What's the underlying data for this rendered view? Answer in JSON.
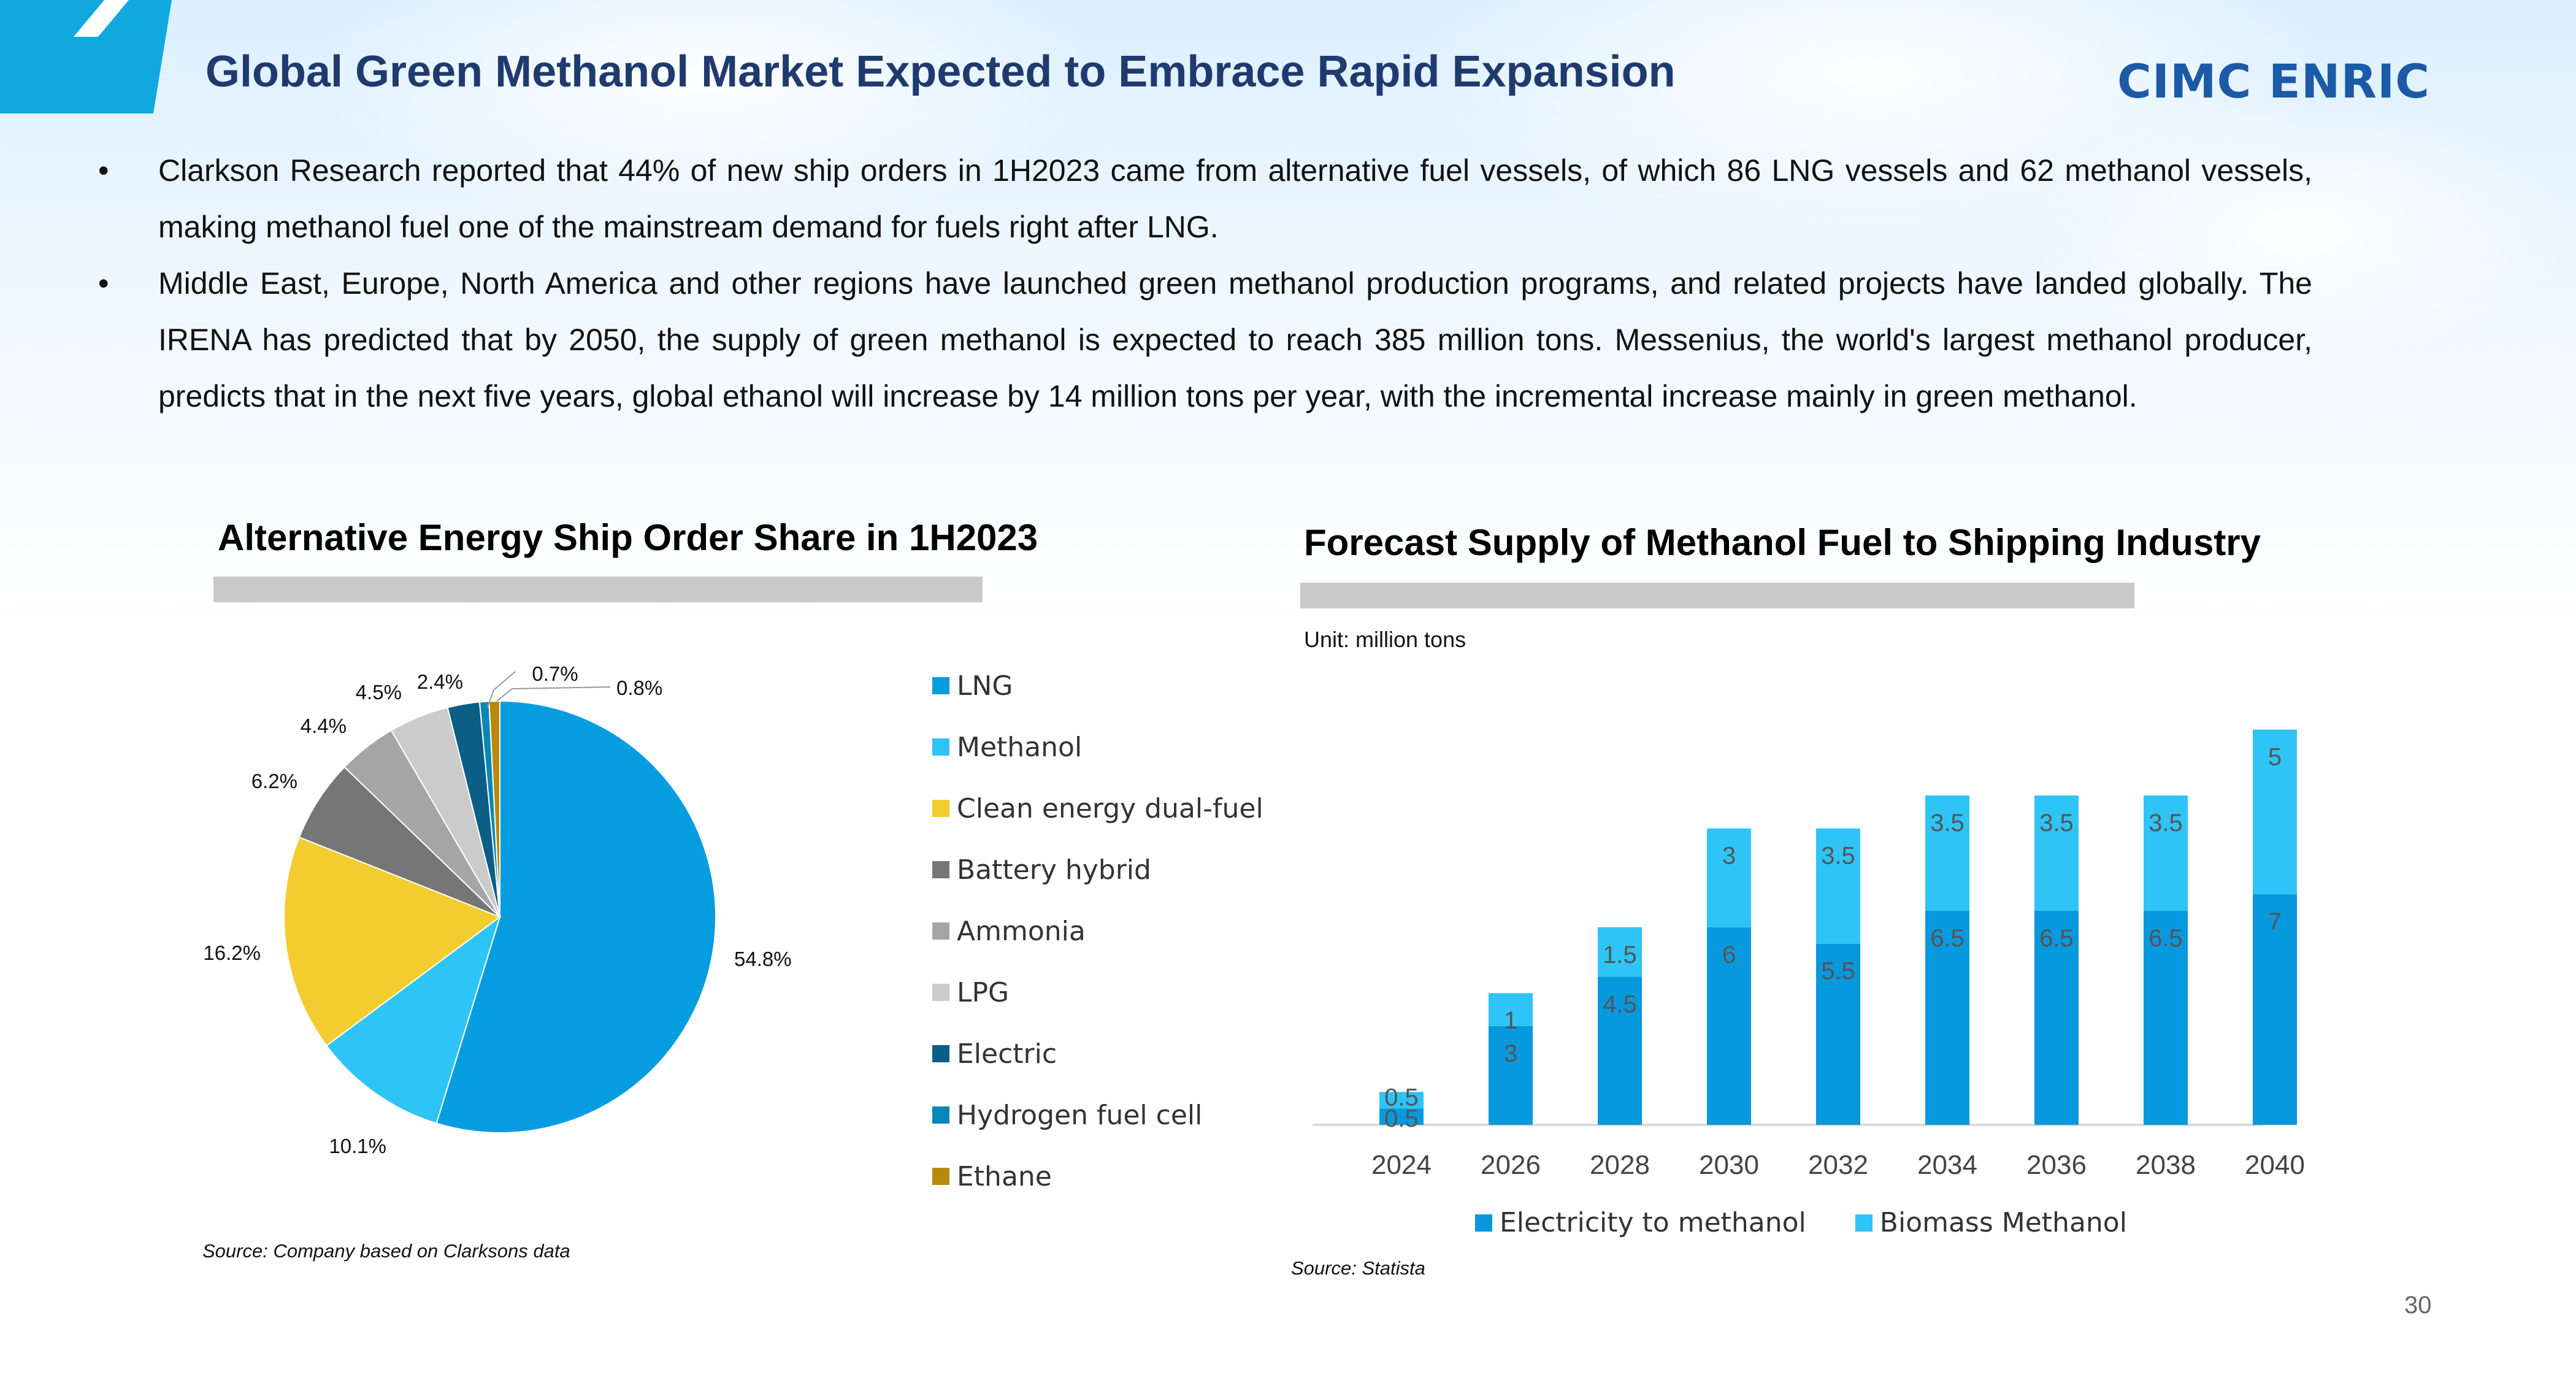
{
  "header": {
    "title": "Global Green Methanol Market Expected to Embrace Rapid Expansion",
    "logo_text": "CIMC ENRIC"
  },
  "bullets": [
    "Clarkson Research reported that 44% of new ship orders in 1H2023 came from alternative fuel vessels, of which 86 LNG vessels and 62 methanol vessels, making methanol fuel one of the mainstream demand for fuels right after LNG.",
    "Middle East, Europe, North America and other regions have launched green methanol production programs, and related projects have landed globally. The IRENA has predicted that by 2050, the supply of green methanol is expected to reach 385 million tons. Messenius, the world's largest methanol producer, predicts that in the next five years, global ethanol will increase by 14 million tons per year, with the incremental increase mainly in green methanol."
  ],
  "bullet_marker": "•",
  "left_panel": {
    "title": "Alternative Energy Ship Order Share in 1H2023",
    "source": "Source: Company based on Clarksons data"
  },
  "right_panel": {
    "title": "Forecast Supply of Methanol Fuel to Shipping Industry",
    "unit": "Unit: million tons",
    "source": "Source: Statista"
  },
  "page_number": "30",
  "chart_data": [
    {
      "type": "pie",
      "title": "Alternative Energy Ship Order Share in 1H2023",
      "labels": [
        "LNG",
        "Methanol",
        "Clean energy dual-fuel",
        "Battery hybrid",
        "Ammonia",
        "LPG",
        "Electric",
        "Hydrogen fuel cell",
        "Ethane"
      ],
      "values": [
        54.8,
        10.1,
        16.2,
        6.2,
        4.4,
        4.5,
        2.4,
        0.7,
        0.8
      ],
      "value_labels": [
        "54.8%",
        "10.1%",
        "16.2%",
        "6.2%",
        "4.4%",
        "4.5%",
        "2.4%",
        "0.7%",
        "0.8%"
      ],
      "colors": [
        "#069de0",
        "#2ec4f6",
        "#f3cd2f",
        "#767676",
        "#a5a5a5",
        "#cbcbcb",
        "#0b5e85",
        "#0a86b8",
        "#b88a0c"
      ],
      "legend_position": "right"
    },
    {
      "type": "bar",
      "stacked": true,
      "title": "Forecast Supply of Methanol Fuel to Shipping Industry",
      "categories": [
        "2024",
        "2026",
        "2028",
        "2030",
        "2032",
        "2034",
        "2036",
        "2038",
        "2040"
      ],
      "series": [
        {
          "name": "Electricity to methanol",
          "color": "#0699dd",
          "values": [
            0.5,
            3,
            4.5,
            6,
            5.5,
            6.5,
            6.5,
            6.5,
            7
          ],
          "labels": [
            "0.5",
            "3",
            "4.5",
            "6",
            "5.5",
            "6.5",
            "6.5",
            "6.5",
            "7"
          ]
        },
        {
          "name": "Biomass Methanol",
          "color": "#2fc4f6",
          "values": [
            0.5,
            1,
            1.5,
            3,
            3.5,
            3.5,
            3.5,
            3.5,
            5
          ],
          "labels": [
            "0.5",
            "1",
            "1.5",
            "3",
            "3.5",
            "3.5",
            "3.5",
            "3.5",
            "5"
          ]
        }
      ],
      "ylim": [
        0,
        12
      ],
      "grid": false,
      "legend_position": "bottom"
    }
  ]
}
